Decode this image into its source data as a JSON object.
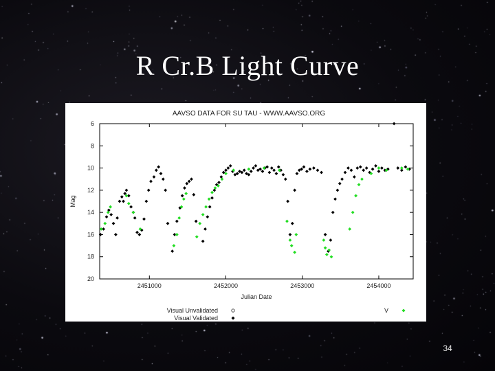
{
  "slide": {
    "title": "R Cr.B Light Curve",
    "page_number": "34"
  },
  "colors": {
    "background": "#0b0a0f",
    "visual_validated": "#000000",
    "v_band": "#22dd22",
    "unvalidated": "#000000"
  },
  "chart_data": {
    "type": "scatter",
    "title": "AAVSO DATA FOR SU TAU - WWW.AAVSO.ORG",
    "xlabel": "Julian Date",
    "ylabel": "Mag",
    "xlim": [
      2450350,
      2454450
    ],
    "ylim": [
      20,
      6
    ],
    "y_inverted": true,
    "x_ticks": [
      2451000,
      2452000,
      2453000,
      2454000
    ],
    "x_tick_labels": [
      "2451000",
      "2452000",
      "2453000",
      "2454000"
    ],
    "y_ticks": [
      6,
      8,
      10,
      12,
      14,
      16,
      18,
      20
    ],
    "y_tick_labels": [
      "6",
      "8",
      "10",
      "12",
      "14",
      "16",
      "18",
      "20"
    ],
    "grid": false,
    "legend": [
      {
        "label": "Visual Unvalidated",
        "marker": "open-circle"
      },
      {
        "label": "Visual Validated",
        "marker": "filled-diamond"
      },
      {
        "label": "V",
        "marker": "filled-diamond-green"
      }
    ],
    "series": [
      {
        "name": "Visual Validated",
        "x": [
          2450360,
          2450400,
          2450440,
          2450470,
          2450500,
          2450530,
          2450560,
          2450580,
          2450610,
          2450640,
          2450660,
          2450680,
          2450700,
          2450730,
          2450760,
          2450790,
          2450810,
          2450840,
          2450870,
          2450900,
          2450930,
          2450960,
          2450990,
          2451020,
          2451060,
          2451090,
          2451120,
          2451150,
          2451180,
          2451210,
          2451240,
          2451300,
          2451330,
          2451360,
          2451400,
          2451430,
          2451460,
          2451490,
          2451520,
          2451550,
          2451580,
          2451610,
          2451700,
          2451730,
          2451760,
          2451790,
          2451820,
          2451850,
          2451880,
          2451910,
          2451940,
          2451970,
          2452000,
          2452030,
          2452060,
          2452090,
          2452120,
          2452150,
          2452180,
          2452210,
          2452240,
          2452270,
          2452300,
          2452330,
          2452360,
          2452390,
          2452420,
          2452450,
          2452480,
          2452510,
          2452540,
          2452570,
          2452600,
          2452630,
          2452660,
          2452690,
          2452720,
          2452750,
          2452780,
          2452810,
          2452840,
          2452870,
          2452900,
          2452930,
          2452960,
          2452990,
          2453020,
          2453060,
          2453100,
          2453150,
          2453200,
          2453250,
          2453300,
          2453340,
          2453370,
          2453400,
          2453430,
          2453460,
          2453490,
          2453520,
          2453560,
          2453600,
          2453640,
          2453680,
          2453720,
          2453760,
          2453800,
          2453840,
          2453880,
          2453920,
          2453960,
          2454000,
          2454040,
          2454080,
          2454120,
          2454200,
          2454250,
          2454300,
          2454350,
          2454400
        ],
        "y": [
          16.0,
          15.5,
          14.4,
          13.8,
          14.2,
          15.0,
          16.0,
          14.5,
          13.0,
          12.6,
          13.0,
          12.3,
          12.0,
          12.5,
          13.5,
          14.0,
          14.5,
          15.8,
          16.0,
          15.6,
          14.6,
          13.0,
          12.0,
          11.2,
          10.8,
          10.2,
          9.9,
          10.5,
          11.0,
          12.0,
          15.0,
          17.5,
          16.0,
          14.8,
          13.6,
          12.5,
          11.8,
          11.4,
          11.2,
          11.0,
          12.4,
          14.8,
          16.6,
          15.5,
          14.4,
          13.5,
          12.7,
          12.0,
          11.5,
          11.3,
          10.8,
          10.4,
          10.2,
          10.0,
          9.8,
          10.3,
          10.6,
          10.5,
          10.3,
          10.4,
          10.2,
          10.5,
          10.6,
          10.3,
          10.0,
          9.8,
          10.2,
          10.1,
          10.3,
          10.0,
          9.9,
          10.4,
          10.0,
          10.2,
          10.5,
          9.9,
          10.2,
          10.6,
          11.0,
          13.0,
          16.0,
          15.0,
          12.0,
          10.5,
          10.2,
          10.1,
          9.9,
          10.3,
          10.1,
          10.0,
          10.2,
          10.4,
          16.0,
          17.5,
          16.5,
          14.0,
          12.8,
          12.0,
          11.4,
          11.0,
          10.4,
          10.0,
          10.2,
          10.8,
          10.0,
          9.9,
          10.2,
          10.0,
          10.4,
          10.1,
          9.8,
          10.3,
          10.0,
          10.2,
          10.1,
          6.0,
          10.0,
          10.2,
          9.9,
          10.1
        ]
      },
      {
        "name": "V",
        "x": [
          2450370,
          2450420,
          2450460,
          2450490,
          2450700,
          2450730,
          2450790,
          2450880,
          2451320,
          2451360,
          2451390,
          2451420,
          2451450,
          2451480,
          2451620,
          2451660,
          2451700,
          2451740,
          2451780,
          2451820,
          2451860,
          2451900,
          2451950,
          2452000,
          2452100,
          2452300,
          2452500,
          2452700,
          2452800,
          2452840,
          2452860,
          2452900,
          2452920,
          2453280,
          2453300,
          2453320,
          2453350,
          2453380,
          2453620,
          2453660,
          2453700,
          2453740,
          2453780,
          2453900,
          2454000,
          2454100,
          2454300,
          2454380
        ],
        "y": [
          15.5,
          15.0,
          14.0,
          13.5,
          12.5,
          13.2,
          14.0,
          15.5,
          17.0,
          16.0,
          14.5,
          13.5,
          12.8,
          12.3,
          16.2,
          15.0,
          14.2,
          13.5,
          12.8,
          12.2,
          11.8,
          11.6,
          11.0,
          10.5,
          10.2,
          10.1,
          10.0,
          10.2,
          14.8,
          16.5,
          17.0,
          17.6,
          16.0,
          16.5,
          17.2,
          17.8,
          17.4,
          18.0,
          15.5,
          14.0,
          12.5,
          11.5,
          11.0,
          10.5,
          10.0,
          10.2,
          10.0,
          10.1
        ]
      }
    ]
  }
}
